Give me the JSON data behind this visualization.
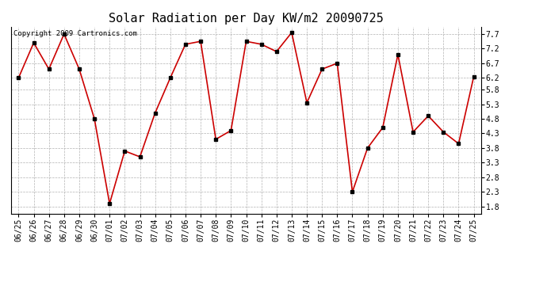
{
  "title": "Solar Radiation per Day KW/m2 20090725",
  "copyright_text": "Copyright 2009 Cartronics.com",
  "dates": [
    "06/25",
    "06/26",
    "06/27",
    "06/28",
    "06/29",
    "06/30",
    "07/01",
    "07/02",
    "07/03",
    "07/04",
    "07/05",
    "07/06",
    "07/07",
    "07/08",
    "07/09",
    "07/10",
    "07/11",
    "07/12",
    "07/13",
    "07/14",
    "07/15",
    "07/16",
    "07/17",
    "07/18",
    "07/19",
    "07/20",
    "07/21",
    "07/22",
    "07/23",
    "07/24",
    "07/25"
  ],
  "values": [
    6.2,
    7.4,
    6.5,
    7.7,
    6.5,
    4.8,
    1.9,
    3.7,
    3.5,
    5.0,
    6.2,
    7.35,
    7.45,
    4.1,
    4.4,
    7.45,
    7.35,
    7.1,
    7.75,
    5.35,
    6.5,
    6.7,
    2.3,
    3.8,
    4.5,
    7.0,
    4.35,
    4.9,
    4.35,
    3.95,
    6.25
  ],
  "line_color": "#cc0000",
  "marker": "s",
  "marker_size": 2.5,
  "marker_color": "#000000",
  "bg_color": "#ffffff",
  "grid_color": "#aaaaaa",
  "yticks": [
    1.8,
    2.3,
    2.8,
    3.3,
    3.8,
    4.3,
    4.8,
    5.3,
    5.8,
    6.2,
    6.7,
    7.2,
    7.7
  ],
  "ylim": [
    1.55,
    7.95
  ],
  "title_fontsize": 11,
  "tick_fontsize": 7,
  "copyright_fontsize": 6.5,
  "linewidth": 1.2
}
